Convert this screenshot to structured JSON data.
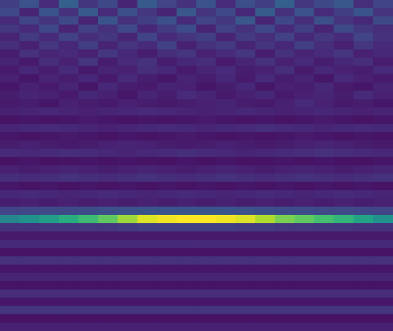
{
  "chart_data": {
    "type": "heatmap",
    "tick_labels": false,
    "color_range": [
      0,
      1
    ],
    "cells": [
      [
        0.18,
        0.25,
        0.12,
        0.3,
        0.15,
        0.22,
        0.1,
        0.28,
        0.2,
        0.14,
        0.26,
        0.12,
        0.24,
        0.18,
        0.3,
        0.16,
        0.22,
        0.27,
        0.13,
        0.2
      ],
      [
        0.22,
        0.1,
        0.26,
        0.14,
        0.28,
        0.12,
        0.24,
        0.16,
        0.1,
        0.27,
        0.15,
        0.22,
        0.11,
        0.29,
        0.14,
        0.25,
        0.12,
        0.18,
        0.26,
        0.15
      ],
      [
        0.12,
        0.2,
        0.15,
        0.22,
        0.1,
        0.26,
        0.14,
        0.18,
        0.24,
        0.12,
        0.2,
        0.16,
        0.27,
        0.1,
        0.21,
        0.13,
        0.24,
        0.15,
        0.11,
        0.22
      ],
      [
        0.16,
        0.12,
        0.21,
        0.1,
        0.19,
        0.14,
        0.22,
        0.11,
        0.17,
        0.23,
        0.1,
        0.19,
        0.14,
        0.21,
        0.12,
        0.18,
        0.1,
        0.22,
        0.16,
        0.13
      ],
      [
        0.1,
        0.17,
        0.12,
        0.19,
        0.13,
        0.16,
        0.1,
        0.2,
        0.12,
        0.15,
        0.18,
        0.1,
        0.17,
        0.13,
        0.19,
        0.11,
        0.16,
        0.12,
        0.2,
        0.14
      ],
      [
        0.13,
        0.09,
        0.16,
        0.11,
        0.18,
        0.1,
        0.15,
        0.12,
        0.19,
        0.09,
        0.14,
        0.17,
        0.1,
        0.15,
        0.11,
        0.18,
        0.13,
        0.09,
        0.16,
        0.12
      ],
      [
        0.08,
        0.14,
        0.1,
        0.12,
        0.09,
        0.16,
        0.11,
        0.08,
        0.13,
        0.15,
        0.09,
        0.12,
        0.16,
        0.08,
        0.14,
        0.1,
        0.12,
        0.15,
        0.09,
        0.11
      ],
      [
        0.1,
        0.07,
        0.13,
        0.09,
        0.15,
        0.08,
        0.12,
        0.14,
        0.08,
        0.11,
        0.13,
        0.07,
        0.1,
        0.14,
        0.09,
        0.12,
        0.08,
        0.11,
        0.13,
        0.08
      ],
      [
        0.07,
        0.11,
        0.08,
        0.12,
        0.07,
        0.1,
        0.09,
        0.13,
        0.11,
        0.07,
        0.1,
        0.12,
        0.08,
        0.09,
        0.13,
        0.07,
        0.11,
        0.09,
        0.08,
        0.12
      ],
      [
        0.09,
        0.06,
        0.1,
        0.08,
        0.11,
        0.07,
        0.12,
        0.08,
        0.06,
        0.1,
        0.08,
        0.11,
        0.07,
        0.12,
        0.08,
        0.1,
        0.06,
        0.12,
        0.09,
        0.07
      ],
      [
        0.06,
        0.09,
        0.07,
        0.1,
        0.06,
        0.11,
        0.08,
        0.07,
        0.1,
        0.09,
        0.06,
        0.08,
        0.11,
        0.06,
        0.09,
        0.08,
        0.11,
        0.07,
        0.06,
        0.1
      ],
      [
        0.08,
        0.1,
        0.09,
        0.07,
        0.11,
        0.09,
        0.06,
        0.1,
        0.08,
        0.12,
        0.1,
        0.07,
        0.09,
        0.11,
        0.07,
        0.09,
        0.1,
        0.08,
        0.12,
        0.09
      ],
      [
        0.07,
        0.08,
        0.06,
        0.09,
        0.08,
        0.07,
        0.09,
        0.08,
        0.07,
        0.08,
        0.09,
        0.1,
        0.08,
        0.07,
        0.09,
        0.12,
        0.09,
        0.07,
        0.08,
        0.06
      ],
      [
        0.09,
        0.1,
        0.11,
        0.1,
        0.09,
        0.1,
        0.11,
        0.12,
        0.11,
        0.1,
        0.09,
        0.1,
        0.11,
        0.1,
        0.09,
        0.1,
        0.11,
        0.1,
        0.09,
        0.1
      ],
      [
        0.05,
        0.06,
        0.05,
        0.06,
        0.07,
        0.06,
        0.05,
        0.06,
        0.05,
        0.06,
        0.07,
        0.06,
        0.05,
        0.06,
        0.05,
        0.06,
        0.07,
        0.06,
        0.05,
        0.06
      ],
      [
        0.1,
        0.11,
        0.12,
        0.11,
        0.1,
        0.09,
        0.1,
        0.11,
        0.12,
        0.11,
        0.1,
        0.11,
        0.12,
        0.13,
        0.12,
        0.11,
        0.1,
        0.11,
        0.12,
        0.11
      ],
      [
        0.06,
        0.05,
        0.06,
        0.07,
        0.06,
        0.05,
        0.06,
        0.05,
        0.06,
        0.07,
        0.06,
        0.05,
        0.06,
        0.05,
        0.06,
        0.07,
        0.06,
        0.05,
        0.06,
        0.05
      ],
      [
        0.08,
        0.09,
        0.08,
        0.07,
        0.08,
        0.09,
        0.1,
        0.09,
        0.08,
        0.07,
        0.08,
        0.09,
        0.08,
        0.07,
        0.08,
        0.09,
        0.1,
        0.09,
        0.08,
        0.07
      ],
      [
        0.12,
        0.11,
        0.12,
        0.13,
        0.12,
        0.11,
        0.1,
        0.11,
        0.12,
        0.13,
        0.12,
        0.11,
        0.1,
        0.11,
        0.12,
        0.13,
        0.14,
        0.13,
        0.12,
        0.11
      ],
      [
        0.05,
        0.06,
        0.05,
        0.05,
        0.06,
        0.05,
        0.06,
        0.05,
        0.05,
        0.06,
        0.05,
        0.06,
        0.05,
        0.05,
        0.06,
        0.05,
        0.06,
        0.05,
        0.05,
        0.06
      ],
      [
        0.09,
        0.08,
        0.09,
        0.1,
        0.09,
        0.08,
        0.09,
        0.1,
        0.09,
        0.08,
        0.09,
        0.1,
        0.09,
        0.08,
        0.09,
        0.1,
        0.09,
        0.08,
        0.09,
        0.1
      ],
      [
        0.13,
        0.12,
        0.13,
        0.14,
        0.13,
        0.12,
        0.13,
        0.14,
        0.13,
        0.12,
        0.13,
        0.14,
        0.13,
        0.12,
        0.13,
        0.14,
        0.13,
        0.12,
        0.13,
        0.14
      ],
      [
        0.06,
        0.05,
        0.06,
        0.05,
        0.06,
        0.05,
        0.06,
        0.05,
        0.06,
        0.05,
        0.06,
        0.05,
        0.06,
        0.05,
        0.06,
        0.05,
        0.06,
        0.05,
        0.06,
        0.05
      ],
      [
        0.11,
        0.12,
        0.11,
        0.1,
        0.11,
        0.12,
        0.11,
        0.1,
        0.11,
        0.12,
        0.11,
        0.1,
        0.11,
        0.12,
        0.11,
        0.1,
        0.11,
        0.12,
        0.11,
        0.1
      ],
      [
        0.08,
        0.09,
        0.08,
        0.09,
        0.08,
        0.09,
        0.08,
        0.09,
        0.08,
        0.09,
        0.08,
        0.09,
        0.08,
        0.09,
        0.08,
        0.09,
        0.08,
        0.09,
        0.08,
        0.09
      ],
      [
        0.2,
        0.21,
        0.22,
        0.22,
        0.23,
        0.24,
        0.25,
        0.26,
        0.26,
        0.26,
        0.26,
        0.26,
        0.25,
        0.24,
        0.23,
        0.23,
        0.22,
        0.22,
        0.21,
        0.2
      ],
      [
        0.45,
        0.5,
        0.55,
        0.62,
        0.68,
        0.75,
        0.85,
        0.95,
        0.98,
        1.0,
        1.0,
        0.98,
        0.95,
        0.88,
        0.8,
        0.75,
        0.7,
        0.65,
        0.58,
        0.5
      ],
      [
        0.14,
        0.14,
        0.15,
        0.15,
        0.16,
        0.16,
        0.17,
        0.18,
        0.18,
        0.18,
        0.18,
        0.18,
        0.17,
        0.17,
        0.16,
        0.16,
        0.15,
        0.15,
        0.14,
        0.14
      ],
      [
        0.07,
        0.07,
        0.07,
        0.07,
        0.07,
        0.07,
        0.07,
        0.07,
        0.07,
        0.07,
        0.07,
        0.07,
        0.07,
        0.07,
        0.07,
        0.07,
        0.07,
        0.07,
        0.07,
        0.07
      ],
      [
        0.12,
        0.12,
        0.12,
        0.12,
        0.12,
        0.12,
        0.12,
        0.12,
        0.12,
        0.12,
        0.12,
        0.12,
        0.12,
        0.12,
        0.12,
        0.12,
        0.12,
        0.12,
        0.12,
        0.12
      ],
      [
        0.05,
        0.05,
        0.05,
        0.05,
        0.05,
        0.05,
        0.05,
        0.05,
        0.05,
        0.05,
        0.05,
        0.05,
        0.05,
        0.05,
        0.05,
        0.05,
        0.05,
        0.05,
        0.05,
        0.05
      ],
      [
        0.14,
        0.14,
        0.14,
        0.14,
        0.14,
        0.14,
        0.14,
        0.14,
        0.14,
        0.14,
        0.14,
        0.14,
        0.14,
        0.14,
        0.14,
        0.14,
        0.14,
        0.14,
        0.14,
        0.14
      ],
      [
        0.06,
        0.06,
        0.06,
        0.06,
        0.06,
        0.06,
        0.06,
        0.06,
        0.06,
        0.06,
        0.06,
        0.06,
        0.06,
        0.06,
        0.06,
        0.06,
        0.06,
        0.06,
        0.06,
        0.06
      ],
      [
        0.1,
        0.1,
        0.1,
        0.1,
        0.1,
        0.1,
        0.1,
        0.1,
        0.1,
        0.1,
        0.1,
        0.1,
        0.1,
        0.1,
        0.1,
        0.1,
        0.1,
        0.1,
        0.1,
        0.1
      ],
      [
        0.05,
        0.05,
        0.05,
        0.05,
        0.05,
        0.05,
        0.05,
        0.05,
        0.05,
        0.05,
        0.05,
        0.05,
        0.05,
        0.05,
        0.05,
        0.05,
        0.05,
        0.05,
        0.05,
        0.05
      ],
      [
        0.13,
        0.13,
        0.13,
        0.13,
        0.13,
        0.13,
        0.13,
        0.13,
        0.13,
        0.13,
        0.13,
        0.13,
        0.13,
        0.13,
        0.13,
        0.13,
        0.13,
        0.13,
        0.13,
        0.13
      ],
      [
        0.06,
        0.06,
        0.06,
        0.06,
        0.06,
        0.06,
        0.06,
        0.06,
        0.06,
        0.06,
        0.06,
        0.06,
        0.06,
        0.06,
        0.06,
        0.06,
        0.06,
        0.06,
        0.06,
        0.06
      ],
      [
        0.15,
        0.15,
        0.15,
        0.15,
        0.15,
        0.15,
        0.15,
        0.15,
        0.15,
        0.15,
        0.15,
        0.15,
        0.15,
        0.15,
        0.15,
        0.15,
        0.15,
        0.15,
        0.15,
        0.15
      ],
      [
        0.05,
        0.05,
        0.05,
        0.05,
        0.05,
        0.05,
        0.05,
        0.05,
        0.05,
        0.05,
        0.05,
        0.05,
        0.05,
        0.05,
        0.05,
        0.05,
        0.05,
        0.05,
        0.05,
        0.05
      ],
      [
        0.09,
        0.09,
        0.09,
        0.09,
        0.09,
        0.09,
        0.09,
        0.09,
        0.09,
        0.09,
        0.09,
        0.09,
        0.09,
        0.09,
        0.09,
        0.09,
        0.09,
        0.09,
        0.09,
        0.09
      ]
    ]
  }
}
